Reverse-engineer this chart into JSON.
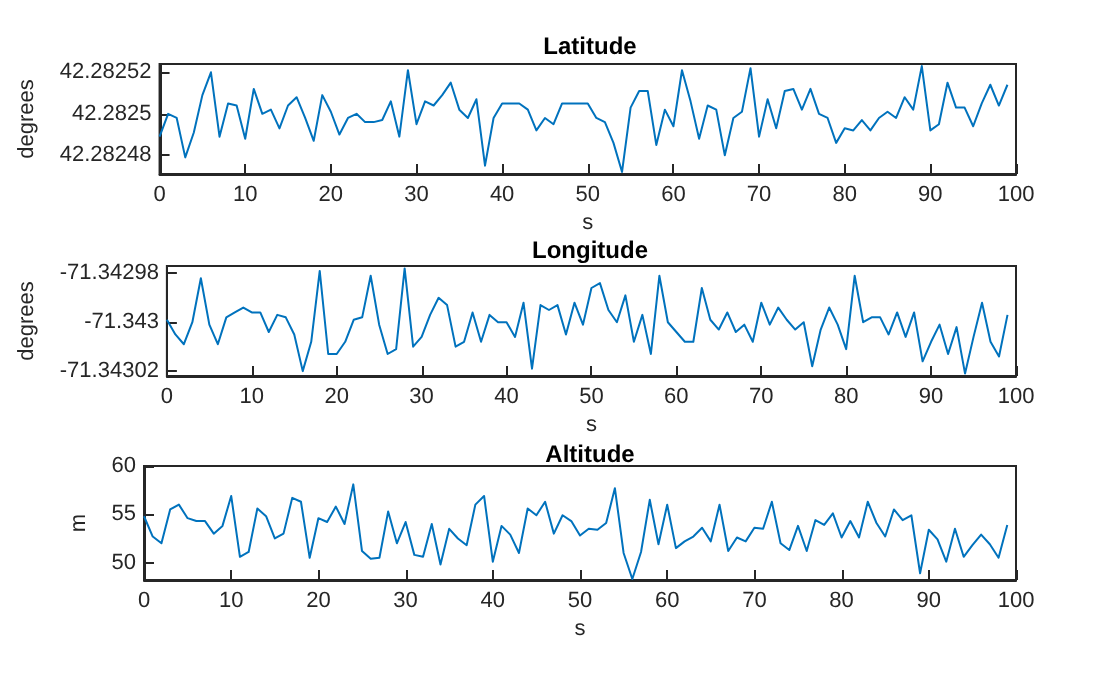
{
  "chart_data": [
    {
      "type": "line",
      "title": "Latitude",
      "xlabel": "s",
      "ylabel": "degrees",
      "color": "#0072bd",
      "xlim": [
        0,
        100
      ],
      "xticks": [
        0,
        10,
        20,
        30,
        40,
        50,
        60,
        70,
        80,
        90,
        100
      ],
      "ylim": [
        42.282471,
        42.282524
      ],
      "yticks": [
        42.28248,
        42.2825,
        42.28252
      ],
      "x": [
        0,
        1,
        2,
        3,
        4,
        5,
        6,
        7,
        8,
        9,
        10,
        11,
        12,
        13,
        14,
        15,
        16,
        17,
        18,
        19,
        20,
        21,
        22,
        23,
        24,
        25,
        26,
        27,
        28,
        29,
        30,
        31,
        32,
        33,
        34,
        35,
        36,
        37,
        38,
        39,
        40,
        41,
        42,
        43,
        44,
        45,
        46,
        47,
        48,
        49,
        50,
        51,
        52,
        53,
        54,
        55,
        56,
        57,
        58,
        59,
        60,
        61,
        62,
        63,
        64,
        65,
        66,
        67,
        68,
        69,
        70,
        71,
        72,
        73,
        74,
        75,
        76,
        77,
        78,
        79,
        80,
        81,
        82,
        83,
        84,
        85,
        86,
        87,
        88,
        89,
        90,
        91,
        92,
        93,
        94,
        95,
        96,
        97,
        98,
        99
      ],
      "values": [
        42.282489,
        42.2825,
        42.282498,
        42.282479,
        42.282491,
        42.282509,
        42.28252,
        42.282489,
        42.282505,
        42.282504,
        42.282488,
        42.282512,
        42.2825,
        42.282502,
        42.282493,
        42.282504,
        42.282508,
        42.282498,
        42.282487,
        42.282509,
        42.282501,
        42.28249,
        42.282498,
        42.2825,
        42.282496,
        42.282496,
        42.282497,
        42.282506,
        42.282489,
        42.282521,
        42.282495,
        42.282506,
        42.282504,
        42.282509,
        42.282515,
        42.282502,
        42.282498,
        42.282507,
        42.282475,
        42.282498,
        42.282505,
        42.282505,
        42.282505,
        42.282502,
        42.282492,
        42.282498,
        42.282495,
        42.282505,
        42.282505,
        42.282505,
        42.282505,
        42.282498,
        42.282496,
        42.282486,
        42.282472,
        42.282503,
        42.282511,
        42.282511,
        42.282485,
        42.282502,
        42.282494,
        42.282521,
        42.282506,
        42.282488,
        42.282504,
        42.282502,
        42.28248,
        42.282498,
        42.282501,
        42.282522,
        42.282489,
        42.282507,
        42.282493,
        42.282511,
        42.282512,
        42.282502,
        42.282512,
        42.2825,
        42.282498,
        42.282486,
        42.282493,
        42.282492,
        42.282497,
        42.282492,
        42.282498,
        42.282501,
        42.282498,
        42.282508,
        42.282502,
        42.282523,
        42.282492,
        42.282495,
        42.282515,
        42.282503,
        42.282503,
        42.282494,
        42.282505,
        42.282514,
        42.282504,
        42.282514
      ]
    },
    {
      "type": "line",
      "title": "Longitude",
      "xlabel": "s",
      "ylabel": "degrees",
      "color": "#0072bd",
      "xlim": [
        0,
        100
      ],
      "xticks": [
        0,
        10,
        20,
        30,
        40,
        50,
        60,
        70,
        80,
        90,
        100
      ],
      "ylim": [
        -71.343022,
        -71.342977
      ],
      "yticks": [
        -71.34302,
        -71.343,
        -71.34298
      ],
      "x": [
        0,
        1,
        2,
        3,
        4,
        5,
        6,
        7,
        8,
        9,
        10,
        11,
        12,
        13,
        14,
        15,
        16,
        17,
        18,
        19,
        20,
        21,
        22,
        23,
        24,
        25,
        26,
        27,
        28,
        29,
        30,
        31,
        32,
        33,
        34,
        35,
        36,
        37,
        38,
        39,
        40,
        41,
        42,
        43,
        44,
        45,
        46,
        47,
        48,
        49,
        50,
        51,
        52,
        53,
        54,
        55,
        56,
        57,
        58,
        59,
        60,
        61,
        62,
        63,
        64,
        65,
        66,
        67,
        68,
        69,
        70,
        71,
        72,
        73,
        74,
        75,
        76,
        77,
        78,
        79,
        80,
        81,
        82,
        83,
        84,
        85,
        86,
        87,
        88,
        89,
        90,
        91,
        92,
        93,
        94,
        95,
        96,
        97,
        98,
        99
      ],
      "values": [
        -71.342999,
        -71.343005,
        -71.343009,
        -71.343,
        -71.342982,
        -71.343001,
        -71.343009,
        -71.342998,
        -71.342996,
        -71.342994,
        -71.342996,
        -71.342996,
        -71.343004,
        -71.342997,
        -71.342998,
        -71.343005,
        -71.34302,
        -71.343008,
        -71.342979,
        -71.343013,
        -71.343013,
        -71.343008,
        -71.342999,
        -71.342998,
        -71.342981,
        -71.343001,
        -71.343013,
        -71.343011,
        -71.342978,
        -71.34301,
        -71.343006,
        -71.342997,
        -71.34299,
        -71.342993,
        -71.34301,
        -71.343008,
        -71.342996,
        -71.343008,
        -71.342997,
        -71.343,
        -71.343,
        -71.343006,
        -71.342992,
        -71.343019,
        -71.342993,
        -71.342995,
        -71.342993,
        -71.343005,
        -71.342992,
        -71.343001,
        -71.342986,
        -71.342984,
        -71.342995,
        -71.343,
        -71.342989,
        -71.343008,
        -71.342997,
        -71.343013,
        -71.342981,
        -71.343,
        -71.343004,
        -71.343008,
        -71.343008,
        -71.342986,
        -71.342999,
        -71.343003,
        -71.342996,
        -71.343004,
        -71.343001,
        -71.343008,
        -71.342992,
        -71.343001,
        -71.342994,
        -71.342999,
        -71.343003,
        -71.343,
        -71.343018,
        -71.343003,
        -71.342994,
        -71.343001,
        -71.343011,
        -71.342981,
        -71.343,
        -71.342998,
        -71.342998,
        -71.343005,
        -71.342996,
        -71.343006,
        -71.342996,
        -71.343016,
        -71.343008,
        -71.343001,
        -71.343013,
        -71.343002,
        -71.343021,
        -71.343006,
        -71.342992,
        -71.343008,
        -71.343014,
        -71.342997
      ]
    },
    {
      "type": "line",
      "title": "Altitude",
      "xlabel": "s",
      "ylabel": "m",
      "color": "#0072bd",
      "xlim": [
        0,
        100
      ],
      "xticks": [
        0,
        10,
        20,
        30,
        40,
        50,
        60,
        70,
        80,
        90,
        100
      ],
      "ylim": [
        48.2,
        60
      ],
      "yticks": [
        50,
        55,
        60
      ],
      "x": [
        0,
        1,
        2,
        3,
        4,
        5,
        6,
        7,
        8,
        9,
        10,
        11,
        12,
        13,
        14,
        15,
        16,
        17,
        18,
        19,
        20,
        21,
        22,
        23,
        24,
        25,
        26,
        27,
        28,
        29,
        30,
        31,
        32,
        33,
        34,
        35,
        36,
        37,
        38,
        39,
        40,
        41,
        42,
        43,
        44,
        45,
        46,
        47,
        48,
        49,
        50,
        51,
        52,
        53,
        54,
        55,
        56,
        57,
        58,
        59,
        60,
        61,
        62,
        63,
        64,
        65,
        66,
        67,
        68,
        69,
        70,
        71,
        72,
        73,
        74,
        75,
        76,
        77,
        78,
        79,
        80,
        81,
        82,
        83,
        84,
        85,
        86,
        87,
        88,
        89,
        90,
        91,
        92,
        93,
        94,
        95,
        96,
        97,
        98,
        99
      ],
      "values": [
        54.8,
        52.7,
        52,
        55.5,
        56,
        54.6,
        54.3,
        54.3,
        53,
        53.8,
        56.9,
        50.6,
        51.1,
        55.6,
        54.8,
        52.5,
        53,
        56.7,
        56.3,
        50.5,
        54.6,
        54.2,
        55.8,
        54,
        58.1,
        51.2,
        50.4,
        50.5,
        55.3,
        52,
        54.2,
        50.8,
        50.6,
        54,
        49.8,
        53.5,
        52.5,
        51.8,
        56,
        56.9,
        50.1,
        53.8,
        52.9,
        51,
        55.6,
        54.9,
        56.3,
        53,
        54.9,
        54.3,
        52.8,
        53.5,
        53.4,
        54.1,
        57.7,
        51,
        48.3,
        51.1,
        56.5,
        51.9,
        56,
        51.5,
        52.2,
        52.7,
        53.6,
        52.2,
        56,
        51.2,
        52.6,
        52.2,
        53.6,
        53.5,
        56.3,
        52,
        51.3,
        53.8,
        51.2,
        54.4,
        53.9,
        55.1,
        52.6,
        54.3,
        52.6,
        56.3,
        54.1,
        52.7,
        55.5,
        54.4,
        54.9,
        48.9,
        53.4,
        52.4,
        50.1,
        53.5,
        50.6,
        51.8,
        52.9,
        51.9,
        50.5,
        53.9
      ]
    }
  ]
}
